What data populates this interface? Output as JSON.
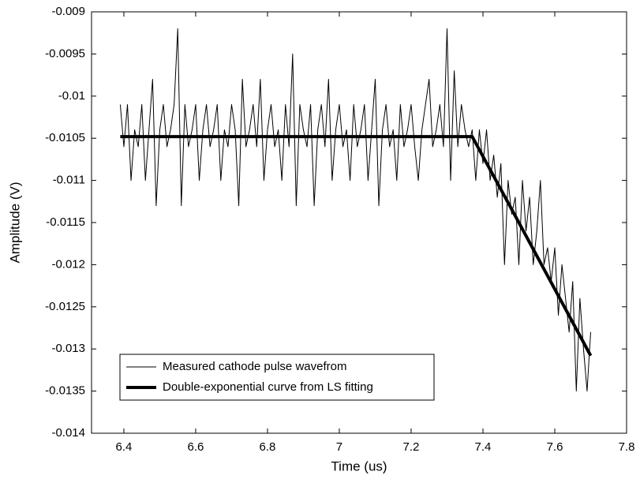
{
  "chart_data": {
    "type": "line",
    "xlabel": "Time (us)",
    "ylabel": "Amplitude (V)",
    "xlim": [
      6.31,
      7.8
    ],
    "xticks": [
      6.4,
      6.6,
      6.8,
      7,
      7.2,
      7.4,
      7.6,
      7.8
    ],
    "ylim": [
      -0.014,
      -0.009
    ],
    "yticks": [
      -0.014,
      -0.0135,
      -0.013,
      -0.0125,
      -0.012,
      -0.0115,
      -0.011,
      -0.0105,
      -0.01,
      -0.0095,
      -0.009
    ],
    "legend": "lower left",
    "series": [
      {
        "name": "Measured cathode pulse wavefrom",
        "color": "#000000",
        "width": 1,
        "x": [
          6.39,
          6.4,
          6.41,
          6.42,
          6.43,
          6.44,
          6.45,
          6.46,
          6.47,
          6.48,
          6.49,
          6.5,
          6.51,
          6.52,
          6.53,
          6.54,
          6.55,
          6.56,
          6.57,
          6.58,
          6.59,
          6.6,
          6.61,
          6.62,
          6.63,
          6.64,
          6.65,
          6.66,
          6.67,
          6.68,
          6.69,
          6.7,
          6.71,
          6.72,
          6.73,
          6.74,
          6.75,
          6.76,
          6.77,
          6.78,
          6.79,
          6.8,
          6.81,
          6.82,
          6.83,
          6.84,
          6.85,
          6.86,
          6.87,
          6.88,
          6.89,
          6.9,
          6.91,
          6.92,
          6.93,
          6.94,
          6.95,
          6.96,
          6.97,
          6.98,
          6.99,
          7.0,
          7.01,
          7.02,
          7.03,
          7.04,
          7.05,
          7.06,
          7.07,
          7.08,
          7.09,
          7.1,
          7.11,
          7.12,
          7.13,
          7.14,
          7.15,
          7.16,
          7.17,
          7.18,
          7.19,
          7.2,
          7.21,
          7.22,
          7.23,
          7.24,
          7.25,
          7.26,
          7.27,
          7.28,
          7.29,
          7.3,
          7.31,
          7.32,
          7.33,
          7.34,
          7.35,
          7.36,
          7.37,
          7.38,
          7.39,
          7.4,
          7.41,
          7.42,
          7.43,
          7.44,
          7.45,
          7.46,
          7.47,
          7.48,
          7.49,
          7.5,
          7.51,
          7.52,
          7.53,
          7.54,
          7.55,
          7.56,
          7.57,
          7.58,
          7.59,
          7.6,
          7.61,
          7.62,
          7.63,
          7.64,
          7.65,
          7.66,
          7.67,
          7.68,
          7.69,
          7.7
        ],
        "values": [
          -0.0101,
          -0.0106,
          -0.0101,
          -0.011,
          -0.0104,
          -0.0106,
          -0.0101,
          -0.011,
          -0.0104,
          -0.0098,
          -0.0113,
          -0.0104,
          -0.0101,
          -0.0106,
          -0.0104,
          -0.0101,
          -0.0092,
          -0.0113,
          -0.0101,
          -0.0106,
          -0.0104,
          -0.0101,
          -0.011,
          -0.0104,
          -0.0101,
          -0.0106,
          -0.0104,
          -0.0101,
          -0.011,
          -0.0104,
          -0.0106,
          -0.0101,
          -0.0104,
          -0.0113,
          -0.0098,
          -0.0106,
          -0.0104,
          -0.0101,
          -0.0106,
          -0.0098,
          -0.011,
          -0.0104,
          -0.0101,
          -0.0106,
          -0.0104,
          -0.011,
          -0.0101,
          -0.0106,
          -0.0095,
          -0.0113,
          -0.0101,
          -0.0104,
          -0.0106,
          -0.0101,
          -0.0113,
          -0.0104,
          -0.0101,
          -0.0106,
          -0.0098,
          -0.011,
          -0.0104,
          -0.0101,
          -0.0106,
          -0.0104,
          -0.011,
          -0.0101,
          -0.0106,
          -0.0104,
          -0.0101,
          -0.011,
          -0.0104,
          -0.0098,
          -0.0113,
          -0.0104,
          -0.0101,
          -0.0106,
          -0.0104,
          -0.011,
          -0.0101,
          -0.0106,
          -0.0104,
          -0.0101,
          -0.0106,
          -0.011,
          -0.0104,
          -0.0101,
          -0.0098,
          -0.0106,
          -0.0104,
          -0.0101,
          -0.0106,
          -0.0092,
          -0.011,
          -0.0097,
          -0.0106,
          -0.0101,
          -0.0104,
          -0.0106,
          -0.0104,
          -0.011,
          -0.0104,
          -0.0108,
          -0.0104,
          -0.011,
          -0.0107,
          -0.0112,
          -0.0108,
          -0.012,
          -0.011,
          -0.0114,
          -0.0112,
          -0.012,
          -0.011,
          -0.0116,
          -0.0112,
          -0.012,
          -0.0116,
          -0.011,
          -0.012,
          -0.0118,
          -0.0122,
          -0.0118,
          -0.0126,
          -0.012,
          -0.0124,
          -0.0128,
          -0.0122,
          -0.0135,
          -0.0124,
          -0.013,
          -0.0135,
          -0.0128
        ]
      },
      {
        "name": "Double-exponential curve from LS fitting",
        "color": "#000000",
        "width": 4,
        "x": [
          6.39,
          7.37,
          7.5,
          7.7
        ],
        "values": [
          -0.01048,
          -0.01048,
          -0.0115,
          -0.01308
        ]
      }
    ]
  }
}
